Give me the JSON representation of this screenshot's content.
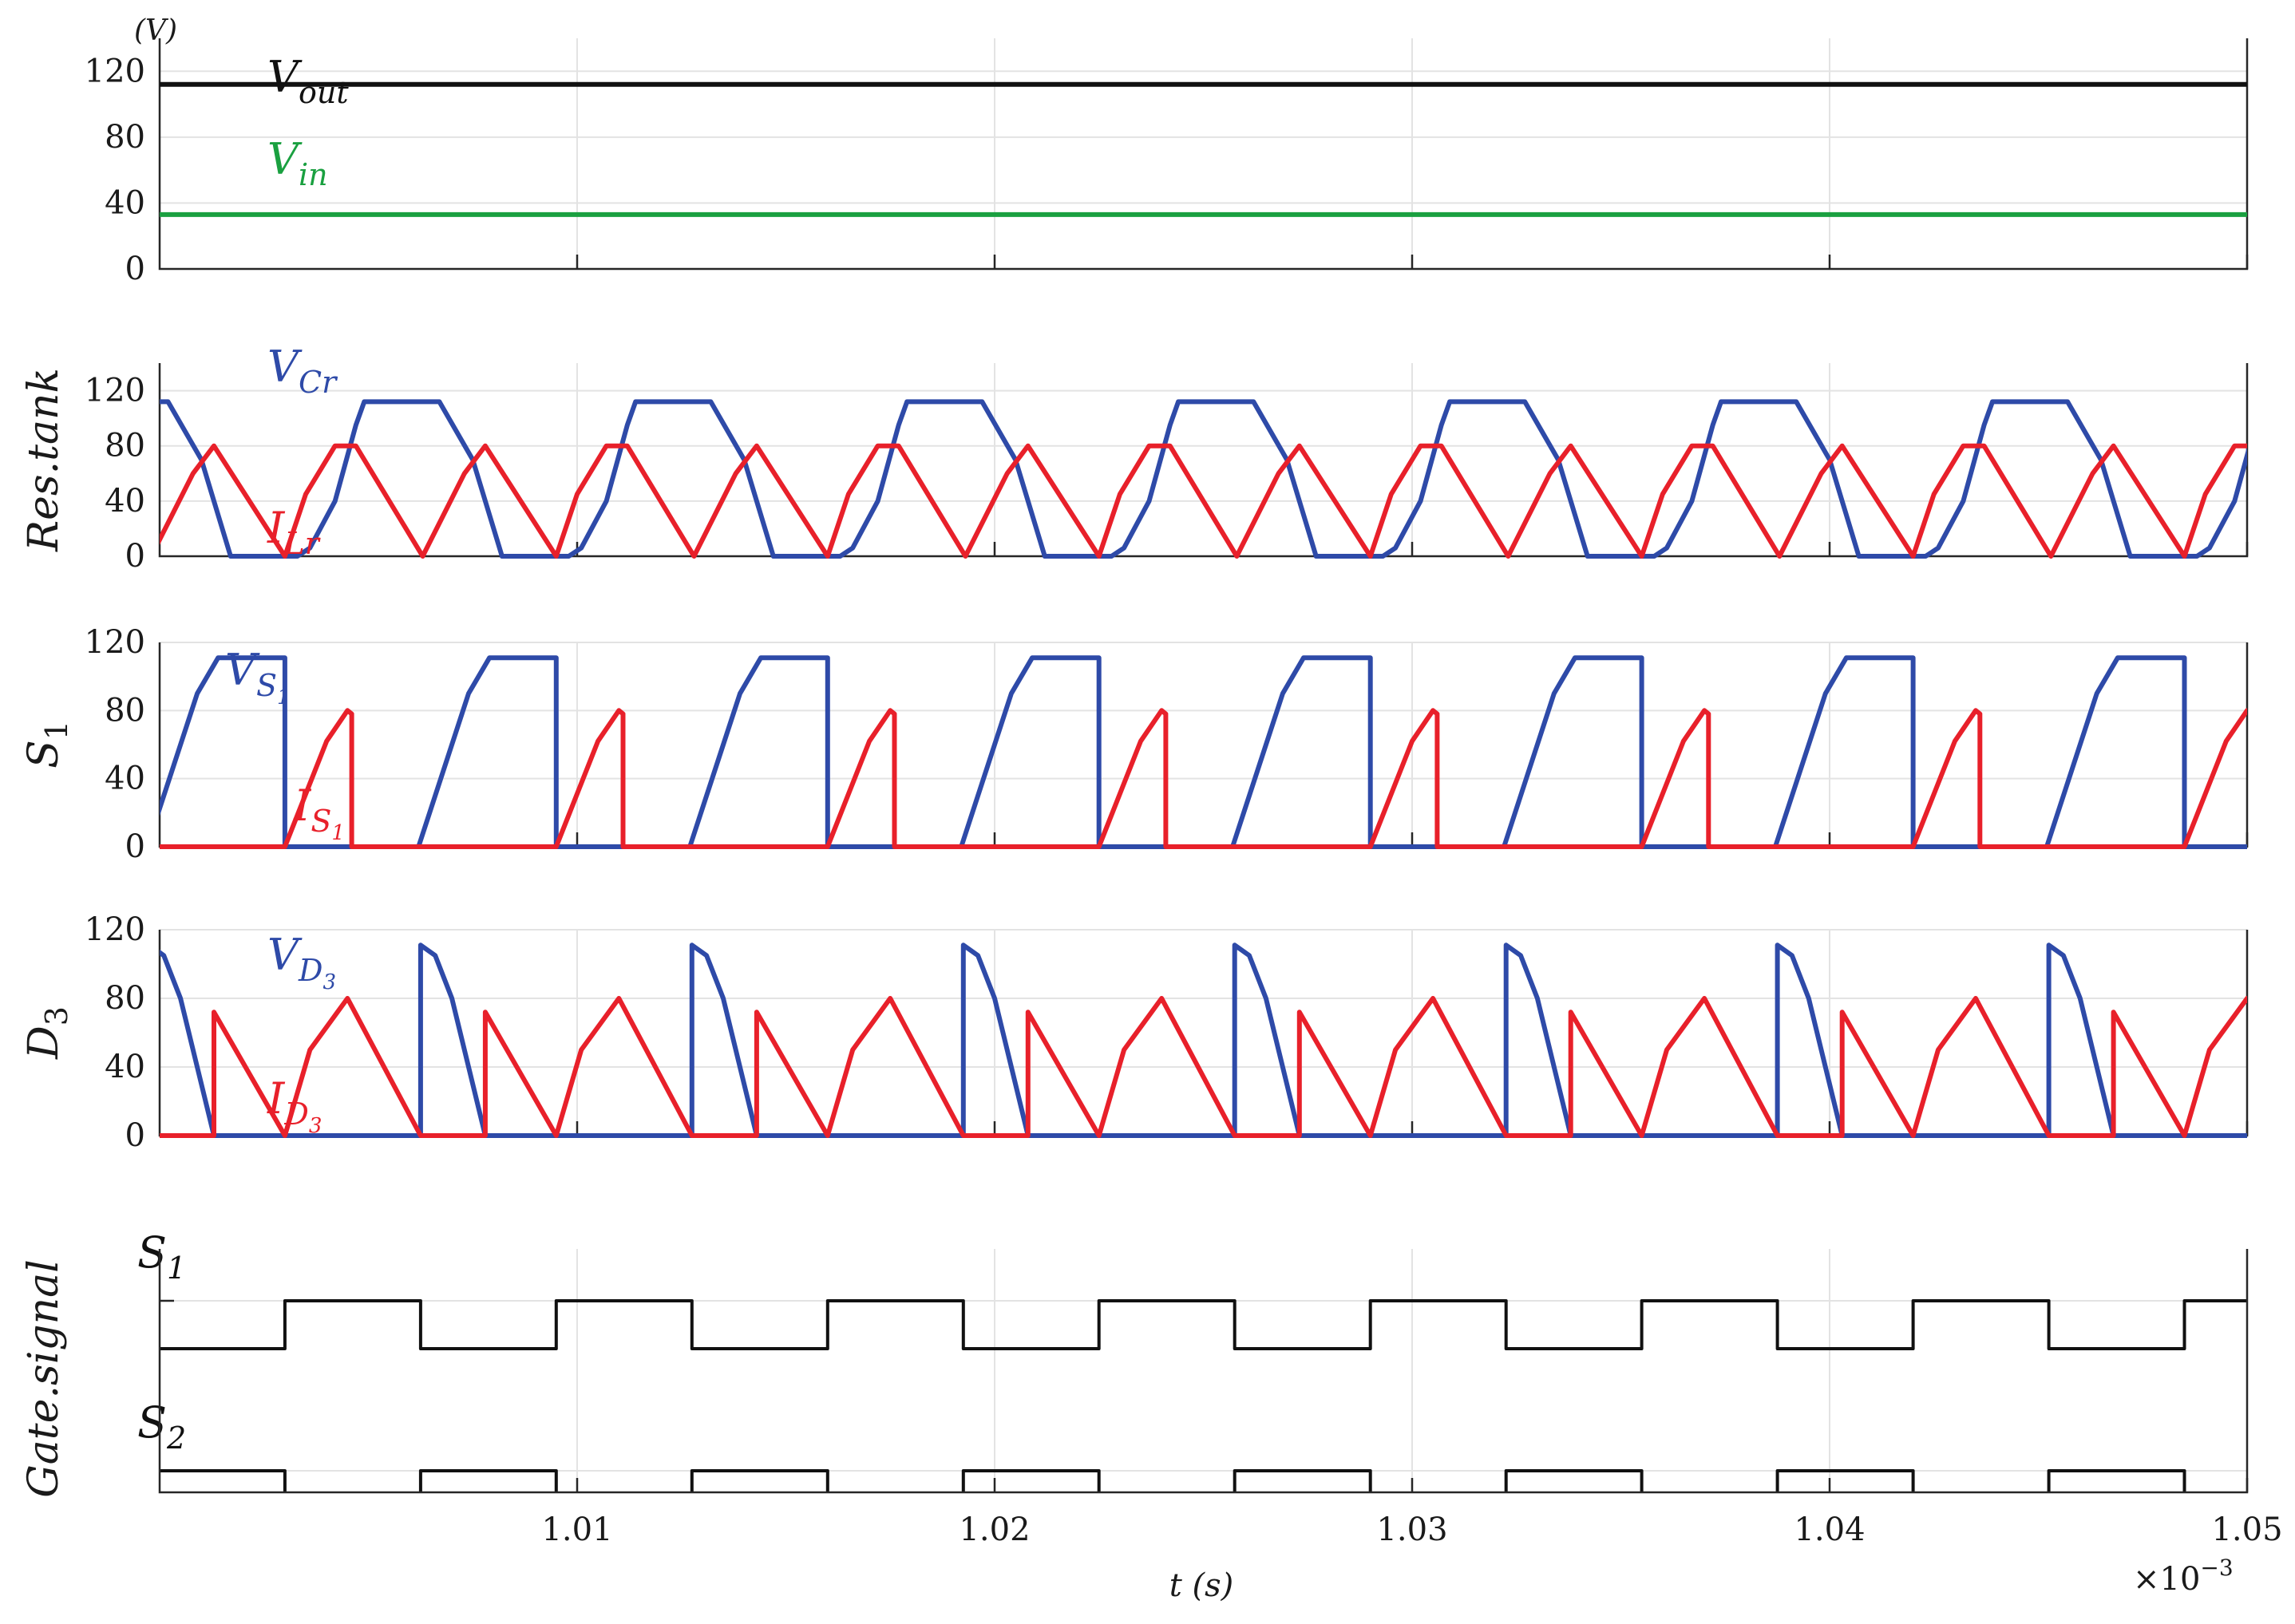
{
  "colors": {
    "black": "#111111",
    "green": "#1aa040",
    "blue": "#2e4aa8",
    "red": "#e8202a"
  },
  "figure": {
    "unit_label": "(V)",
    "x_axis_label": "t (s)",
    "x_multiplier": "×10",
    "x_multiplier_exp": "−3",
    "x_ticks": [
      "1.01",
      "1.02",
      "1.03",
      "1.04",
      "1.05"
    ]
  },
  "chart_data": [
    {
      "type": "line",
      "ylabel": "",
      "ylim": [
        0,
        140
      ],
      "yticks": [
        "0",
        "40",
        "80",
        "120"
      ],
      "grid": true,
      "series": [
        {
          "name": "V_out",
          "label_main": "V",
          "label_sub": "out",
          "color": "#111111",
          "constant": 112
        },
        {
          "name": "V_in",
          "label_main": "V",
          "label_sub": "in",
          "color": "#1aa040",
          "constant": 33
        }
      ]
    },
    {
      "type": "line",
      "ylabel": "Res.tank",
      "ylim": [
        0,
        140
      ],
      "yticks": [
        "0",
        "40",
        "80",
        "120"
      ],
      "grid": true,
      "period_x1e3": 0.0065,
      "series": [
        {
          "name": "V_Cr",
          "label_main": "V",
          "label_sub": "Cr",
          "color": "#2e4aa8",
          "points_in_period": [
            [
              0.0,
              0
            ],
            [
              0.3,
              0
            ],
            [
              0.6,
              6
            ],
            [
              1.2,
              40
            ],
            [
              1.7,
              95
            ],
            [
              1.9,
              112
            ],
            [
              3.7,
              112
            ],
            [
              4.5,
              70
            ],
            [
              5.2,
              0
            ],
            [
              6.5,
              0
            ]
          ]
        },
        {
          "name": "I_Lr",
          "label_main": "I",
          "label_sub": "Lr",
          "color": "#e8202a",
          "points_in_period": [
            [
              0.0,
              0
            ],
            [
              0.5,
              45
            ],
            [
              1.2,
              80
            ],
            [
              1.7,
              80
            ],
            [
              3.3,
              0
            ],
            [
              4.3,
              60
            ],
            [
              4.8,
              80
            ],
            [
              6.5,
              0
            ]
          ]
        }
      ]
    },
    {
      "type": "line",
      "ylabel": "S1",
      "ylim": [
        0,
        120
      ],
      "yticks": [
        "0",
        "40",
        "80",
        "120"
      ],
      "grid": true,
      "series": [
        {
          "name": "V_S1",
          "label_main": "V",
          "label_sub": "S",
          "label_subsub": "1",
          "color": "#2e4aa8",
          "points_in_period": [
            [
              0.0,
              0
            ],
            [
              3.2,
              0
            ],
            [
              4.4,
              90
            ],
            [
              4.9,
              111
            ],
            [
              6.5,
              111
            ]
          ]
        },
        {
          "name": "I_S1",
          "label_main": "I",
          "label_sub": "S",
          "label_subsub": "1",
          "color": "#e8202a",
          "points_in_period": [
            [
              0.0,
              0
            ],
            [
              1.0,
              62
            ],
            [
              1.5,
              80
            ],
            [
              1.6,
              78
            ],
            [
              1.6,
              0
            ],
            [
              6.5,
              0
            ]
          ]
        }
      ]
    },
    {
      "type": "line",
      "ylabel": "D3",
      "ylim": [
        0,
        120
      ],
      "yticks": [
        "0",
        "40",
        "80",
        "120"
      ],
      "grid": true,
      "series": [
        {
          "name": "V_D3",
          "label_main": "V",
          "label_sub": "D",
          "label_subsub": "3",
          "color": "#2e4aa8",
          "points_in_period": [
            [
              0.0,
              0
            ],
            [
              3.25,
              0
            ],
            [
              3.25,
              111
            ],
            [
              3.6,
              105
            ],
            [
              4.0,
              80
            ],
            [
              4.8,
              0
            ],
            [
              6.5,
              0
            ]
          ]
        },
        {
          "name": "I_D3",
          "label_main": "I",
          "label_sub": "D",
          "label_subsub": "3",
          "color": "#e8202a",
          "points_in_period": [
            [
              0.0,
              0
            ],
            [
              0.6,
              50
            ],
            [
              1.5,
              80
            ],
            [
              3.25,
              0
            ],
            [
              4.8,
              0
            ],
            [
              4.8,
              72
            ],
            [
              6.5,
              0
            ]
          ]
        }
      ]
    },
    {
      "type": "line",
      "ylabel": "Gate.signal",
      "grid": true,
      "series": [
        {
          "name": "S1",
          "label_main": "S",
          "label_sub": "1",
          "color": "#111111",
          "points_in_period": [
            [
              0.0,
              0
            ],
            [
              0.0,
              1
            ],
            [
              3.25,
              1
            ],
            [
              3.25,
              0
            ],
            [
              6.5,
              0
            ]
          ]
        },
        {
          "name": "S2",
          "label_main": "S",
          "label_sub": "2",
          "color": "#111111",
          "points_in_period": [
            [
              0.0,
              1
            ],
            [
              0.0,
              0
            ],
            [
              3.25,
              0
            ],
            [
              3.25,
              1
            ],
            [
              6.5,
              1
            ]
          ]
        }
      ]
    }
  ]
}
